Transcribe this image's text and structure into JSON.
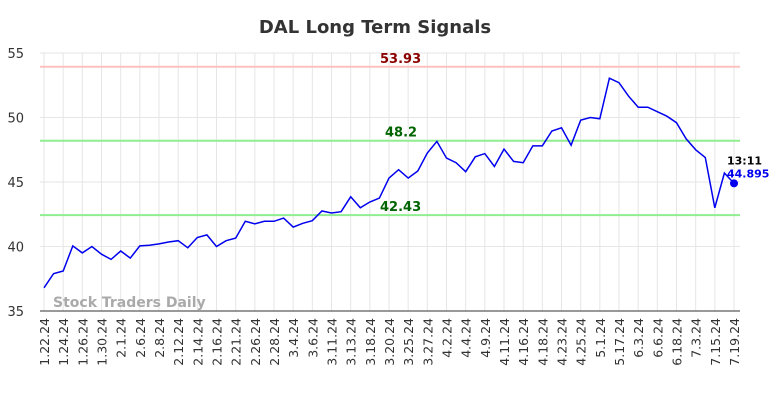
{
  "chart_data": {
    "type": "line",
    "title": "DAL Long Term Signals",
    "watermark": "Stock Traders Daily",
    "categories": [
      "1.22.24",
      null,
      "1.24.24",
      null,
      "1.26.24",
      null,
      "1.30.24",
      null,
      "2.1.24",
      null,
      "2.6.24",
      null,
      "2.8.24",
      null,
      "2.12.24",
      null,
      "2.14.24",
      null,
      "2.16.24",
      null,
      "2.21.24",
      null,
      "2.26.24",
      null,
      "2.28.24",
      null,
      "3.4.24",
      null,
      "3.6.24",
      null,
      "3.11.24",
      null,
      "3.13.24",
      null,
      "3.18.24",
      null,
      "3.20.24",
      null,
      "3.25.24",
      null,
      "3.27.24",
      null,
      "4.2.24",
      null,
      "4.4.24",
      null,
      "4.9.24",
      null,
      "4.11.24",
      null,
      "4.16.24",
      null,
      "4.18.24",
      null,
      "4.23.24",
      null,
      "4.25.24",
      null,
      "5.1.24",
      null,
      "5.17.24",
      null,
      "6.3.24",
      null,
      "6.6.24",
      null,
      "6.18.24",
      null,
      "7.3.24",
      null,
      "7.15.24",
      null,
      "7.19.24"
    ],
    "values": [
      36.8,
      37.9,
      38.1,
      40.05,
      39.5,
      40.0,
      39.4,
      39.0,
      39.65,
      39.1,
      40.05,
      40.1,
      40.2,
      40.35,
      40.45,
      39.9,
      40.7,
      40.9,
      40.0,
      40.45,
      40.65,
      41.95,
      41.75,
      41.95,
      41.95,
      42.2,
      41.5,
      41.8,
      42.0,
      42.75,
      42.6,
      42.7,
      43.85,
      43.0,
      43.45,
      43.75,
      45.3,
      45.95,
      45.3,
      45.85,
      47.25,
      48.15,
      46.85,
      46.5,
      45.8,
      46.95,
      47.2,
      46.2,
      47.55,
      46.6,
      46.5,
      47.8,
      47.8,
      48.95,
      49.2,
      47.85,
      49.8,
      50.0,
      49.9,
      53.05,
      52.7,
      51.65,
      50.8,
      50.8,
      50.45,
      50.1,
      49.6,
      48.35,
      47.5,
      46.9,
      43.0,
      45.7,
      44.895
    ],
    "color": "#0000ee",
    "ylim": [
      35,
      55
    ],
    "yticks": [
      35,
      40,
      45,
      50,
      55
    ],
    "grid": true,
    "hlines": [
      {
        "value": 53.93,
        "line_color": "#ffc0c0",
        "label_color": "#8b0000"
      },
      {
        "value": 48.2,
        "line_color": "#90ee90",
        "label_color": "#006400"
      },
      {
        "value": 42.43,
        "line_color": "#90ee90",
        "label_color": "#006400"
      }
    ],
    "last_label_time": "13:11"
  }
}
